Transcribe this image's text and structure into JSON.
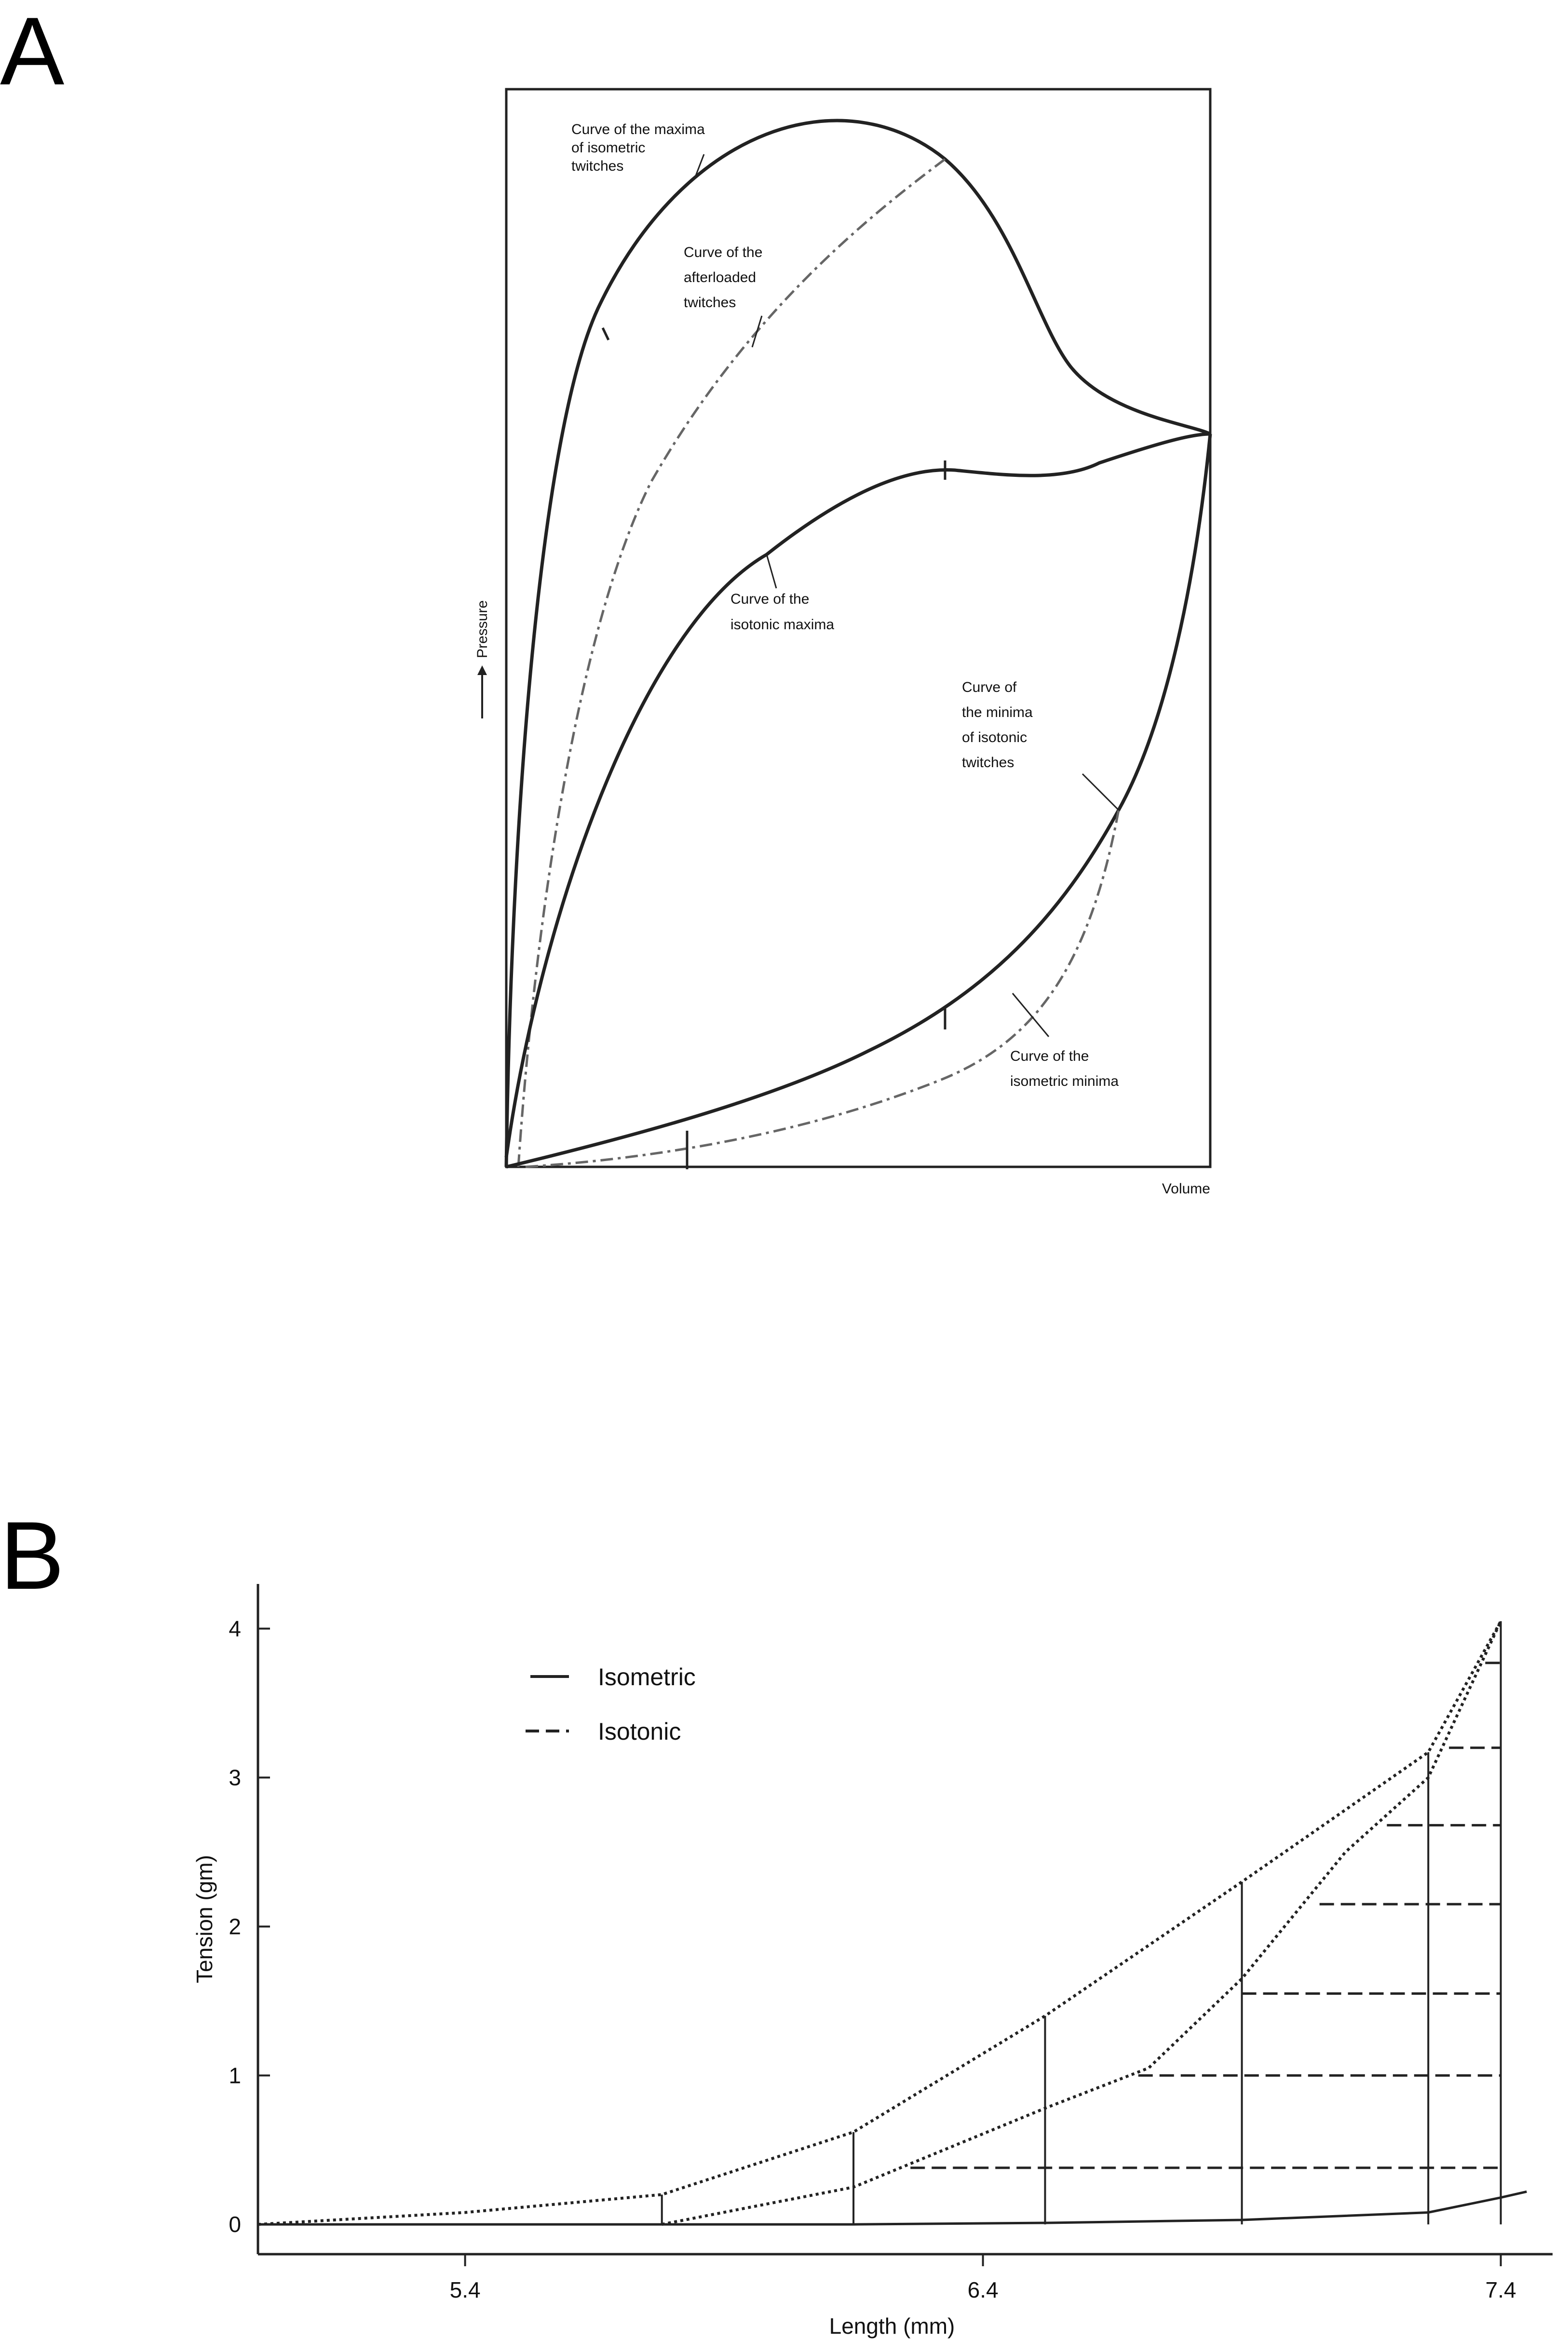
{
  "panels": [
    {
      "label": "A"
    },
    {
      "label": "B"
    }
  ],
  "chart_data": [
    {
      "type": "line",
      "panel": "A",
      "xlabel": "Volume",
      "ylabel": "Pressure",
      "x_ticks": [],
      "y_ticks": [],
      "grid": false,
      "annotations": [
        [
          "Curve of the maxima",
          "of isometric",
          "twitches"
        ],
        [
          "Curve of the",
          "afterloaded",
          "twitches"
        ],
        [
          "Curve of the",
          "isotonic maxima"
        ],
        [
          "Curve of",
          "the minima",
          "of isotonic",
          "twitches"
        ],
        [
          "Curve of the",
          "isometric minima"
        ]
      ],
      "curves": [
        "maxima-isometric",
        "afterloaded",
        "isotonic-maxima",
        "minima-isotonic",
        "isometric-minima"
      ]
    },
    {
      "type": "line",
      "panel": "B",
      "xlabel": "Length (mm)",
      "ylabel": "Tension (gm)",
      "xlim": [
        5.0,
        7.5
      ],
      "ylim": [
        -0.2,
        4.3
      ],
      "x_ticks": [
        "5.4",
        "6.4",
        "7.4"
      ],
      "y_ticks": [
        "0",
        "1",
        "2",
        "3",
        "4"
      ],
      "legend": {
        "position": "top-left",
        "entries": [
          {
            "name": "Isometric",
            "style": "solid"
          },
          {
            "name": "Isotonic",
            "style": "dashed"
          }
        ]
      },
      "grid": false,
      "series": [
        {
          "name": "Isometric maxima",
          "x": [
            5.0,
            5.4,
            5.78,
            6.15,
            6.52,
            6.9,
            7.26,
            7.4
          ],
          "y": [
            0.0,
            0.08,
            0.2,
            0.62,
            1.4,
            2.3,
            3.17,
            4.05
          ]
        },
        {
          "name": "Isotonic maxima",
          "x": [
            5.78,
            6.15,
            6.52,
            6.72,
            6.9,
            7.1,
            7.26,
            7.4
          ],
          "y": [
            0.0,
            0.25,
            0.78,
            1.05,
            1.65,
            2.5,
            3.0,
            4.05
          ]
        },
        {
          "name": "Resting tension",
          "x": [
            5.0,
            5.4,
            5.78,
            6.15,
            6.52,
            6.9,
            7.26,
            7.4,
            7.45
          ],
          "y": [
            0.0,
            0.0,
            0.0,
            0.0,
            0.01,
            0.03,
            0.08,
            0.18,
            0.22
          ]
        }
      ],
      "isometric_verticals": [
        {
          "x": 5.78,
          "y_top": 0.2
        },
        {
          "x": 6.15,
          "y_top": 0.62
        },
        {
          "x": 6.52,
          "y_top": 1.4
        },
        {
          "x": 6.9,
          "y_top": 2.3
        },
        {
          "x": 7.26,
          "y_top": 3.17
        },
        {
          "x": 7.4,
          "y_top": 4.05
        }
      ],
      "isotonic_horizontals": [
        {
          "y": 0.38,
          "x_start": 6.26
        },
        {
          "y": 1.0,
          "x_start": 6.7
        },
        {
          "y": 1.55,
          "x_start": 6.9
        },
        {
          "y": 2.15,
          "x_start": 7.05
        },
        {
          "y": 2.68,
          "x_start": 7.18
        },
        {
          "y": 3.2,
          "x_start": 7.3
        },
        {
          "y": 3.77,
          "x_start": 7.37
        }
      ]
    }
  ]
}
